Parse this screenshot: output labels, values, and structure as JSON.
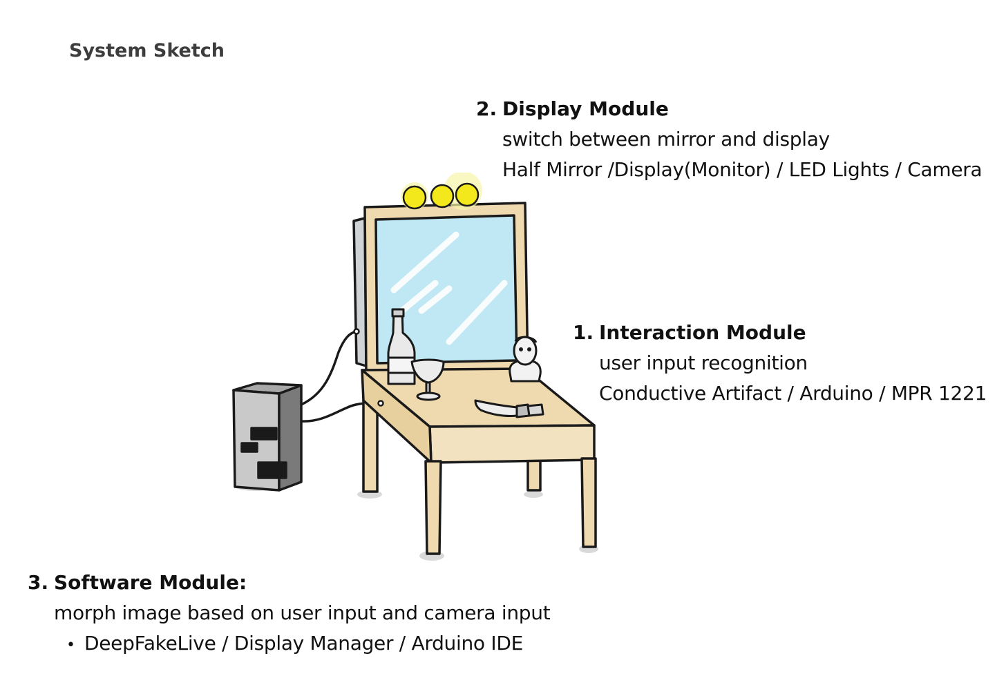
{
  "page": {
    "title": "System Sketch"
  },
  "modules": {
    "display": {
      "number": "2.",
      "name": "Display Module",
      "description": "switch between mirror and display",
      "components": "Half Mirror /Display(Monitor) / LED Lights / Camera"
    },
    "interaction": {
      "number": "1.",
      "name": "Interaction Module",
      "description": "user input recognition",
      "components": "Conductive Artifact / Arduino / MPR 1221"
    },
    "software": {
      "number": "3.",
      "name": "Software Module:",
      "description": "morph image based on user input and camera input",
      "bullets": [
        "DeepFakeLive / Display Manager / Arduino IDE"
      ]
    }
  },
  "sketch": {
    "items": [
      "led-bulb",
      "mirror",
      "bottle",
      "goblet",
      "bust-statue",
      "knife",
      "table",
      "computer-tower",
      "cable"
    ],
    "colors": {
      "mirror_glass": "#bfe8f4",
      "wood": "#efd9ae",
      "led": "#f3e81c",
      "led_glow": "#f6f3a8",
      "computer": "#8c8c8c",
      "outline": "#1a1a1a"
    }
  }
}
